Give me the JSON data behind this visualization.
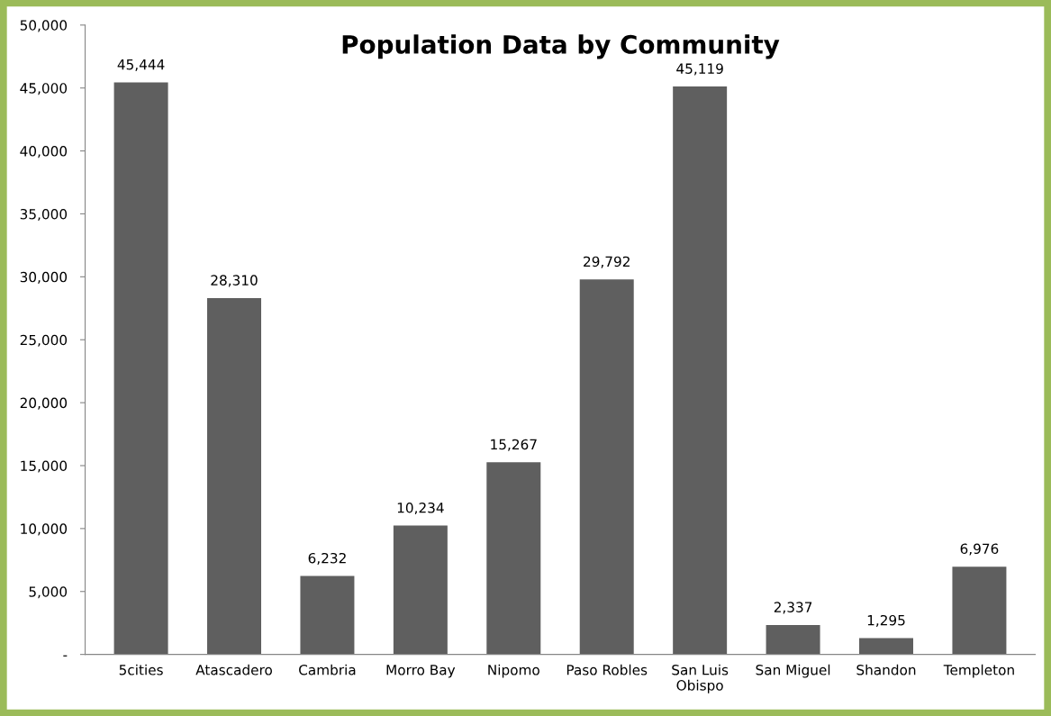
{
  "chart_data": {
    "type": "bar",
    "title": "Population Data by Community",
    "categories": [
      "5cities",
      "Atascadero",
      "Cambria",
      "Morro Bay",
      "Nipomo",
      "Paso Robles",
      "San Luis Obispo",
      "San Miguel",
      "Shandon",
      "Templeton"
    ],
    "values": [
      45444,
      28310,
      6232,
      10234,
      15267,
      29792,
      45119,
      2337,
      1295,
      6976
    ],
    "value_labels": [
      "45,444",
      "28,310",
      "6,232",
      "10,234",
      "15,267",
      "29,792",
      "45,119",
      "2,337",
      "1,295",
      "6,976"
    ],
    "color": "#5f5f5f",
    "ylim": [
      0,
      50000
    ],
    "yticks": [
      {
        "value": 0,
        "label": "-"
      },
      {
        "value": 5000,
        "label": "5,000"
      },
      {
        "value": 10000,
        "label": "10,000"
      },
      {
        "value": 15000,
        "label": "15,000"
      },
      {
        "value": 20000,
        "label": "20,000"
      },
      {
        "value": 25000,
        "label": "25,000"
      },
      {
        "value": 30000,
        "label": "30,000"
      },
      {
        "value": 35000,
        "label": "35,000"
      },
      {
        "value": 40000,
        "label": "40,000"
      },
      {
        "value": 45000,
        "label": "45,000"
      },
      {
        "value": 50000,
        "label": "50,000"
      }
    ],
    "grid": false,
    "legend": false
  }
}
